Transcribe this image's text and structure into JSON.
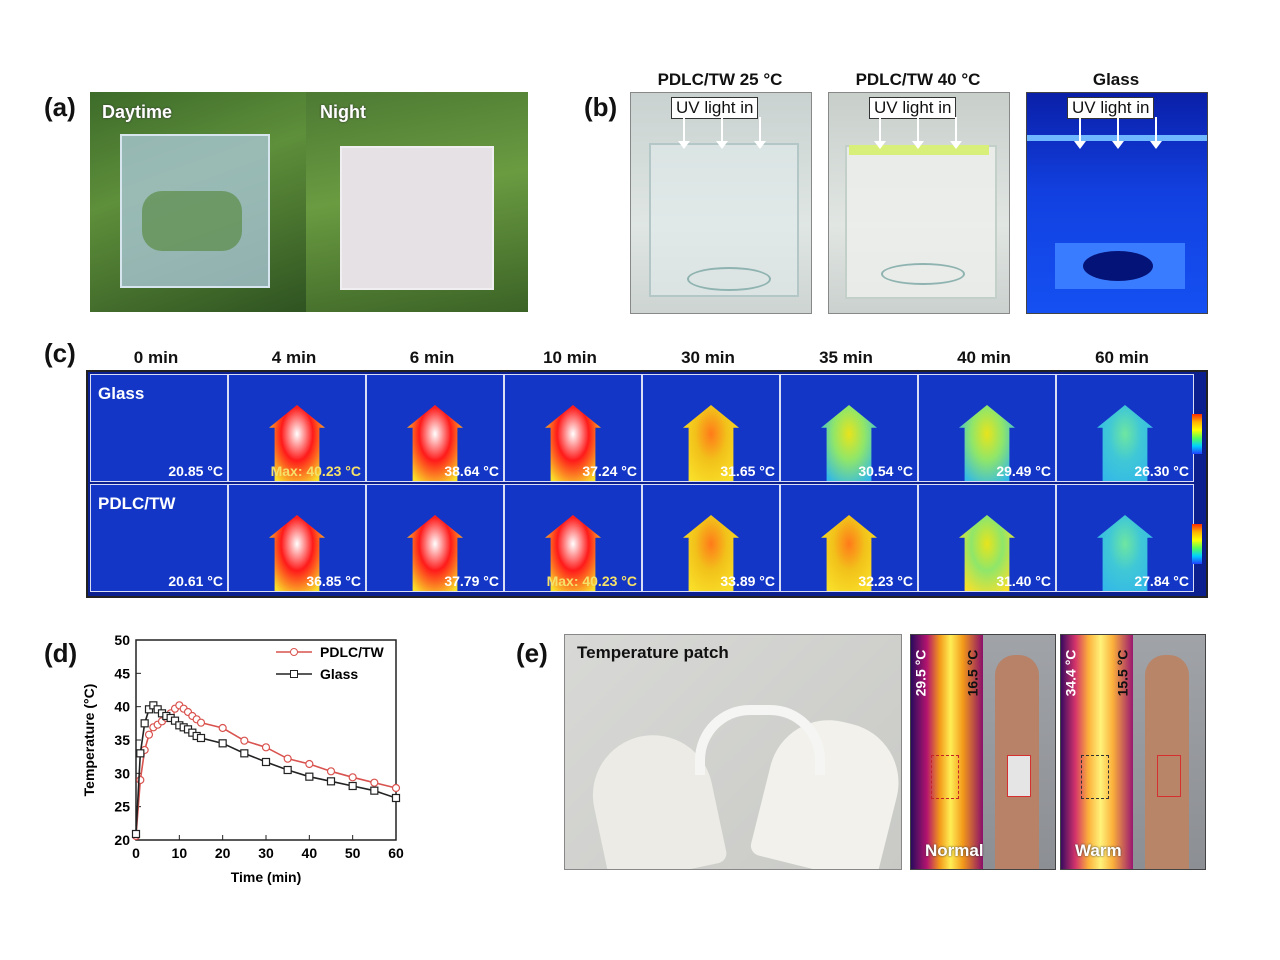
{
  "panels": {
    "a": {
      "letter": "(a)",
      "labels": [
        "Daytime",
        "Night"
      ]
    },
    "b": {
      "letter": "(b)",
      "titles": [
        "PDLC/TW 25 °C",
        "PDLC/TW 40 °C",
        "Glass"
      ],
      "uv_label": "UV light in"
    },
    "c": {
      "letter": "(c)",
      "times": [
        "0 min",
        "4 min",
        "6 min",
        "10 min",
        "30 min",
        "35 min",
        "40 min",
        "60 min"
      ],
      "rows": [
        {
          "name": "Glass",
          "temps": [
            "20.85 °C",
            "Max: 40.23 °C",
            "38.64 °C",
            "37.24 °C",
            "31.65 °C",
            "30.54 °C",
            "29.49 °C",
            "26.30 °C"
          ],
          "heat": [
            0,
            1.0,
            0.95,
            0.9,
            0.6,
            0.5,
            0.4,
            0.2
          ]
        },
        {
          "name": "PDLC/TW",
          "temps": [
            "20.61 °C",
            "36.85 °C",
            "37.79 °C",
            "Max: 40.23 °C",
            "33.89 °C",
            "32.23 °C",
            "31.40 °C",
            "27.84 °C"
          ],
          "heat": [
            0,
            0.9,
            0.92,
            1.0,
            0.7,
            0.62,
            0.55,
            0.25
          ]
        }
      ]
    },
    "d": {
      "letter": "(d)"
    },
    "e": {
      "letter": "(e)",
      "photo_label": "Temperature patch",
      "normal": {
        "label": "Normal",
        "max": "29.5 °C",
        "min": "16.5 °C"
      },
      "warm": {
        "label": "Warm",
        "max": "34.4 °C",
        "min": "15.5 °C"
      }
    }
  },
  "chart_data": {
    "type": "line",
    "xlabel": "Time (min)",
    "ylabel": "Temperature (°C)",
    "xlim": [
      0,
      60
    ],
    "ylim": [
      20,
      50
    ],
    "xticks": [
      0,
      10,
      20,
      30,
      40,
      50,
      60
    ],
    "yticks": [
      20,
      25,
      30,
      35,
      40,
      45,
      50
    ],
    "legend_position": "top-right",
    "series": [
      {
        "name": "PDLC/TW",
        "color": "#d9534f",
        "x": [
          0,
          1,
          2,
          3,
          4,
          5,
          6,
          7,
          8,
          9,
          10,
          11,
          12,
          13,
          14,
          15,
          20,
          25,
          30,
          35,
          40,
          45,
          50,
          55,
          60
        ],
        "y": [
          20.6,
          29.0,
          33.5,
          35.8,
          36.9,
          37.3,
          37.8,
          38.3,
          39.0,
          39.7,
          40.2,
          39.7,
          39.2,
          38.6,
          38.1,
          37.6,
          36.8,
          34.9,
          33.9,
          32.2,
          31.4,
          30.3,
          29.4,
          28.6,
          27.8
        ]
      },
      {
        "name": "Glass",
        "color": "#222222",
        "x": [
          0,
          1,
          2,
          3,
          4,
          5,
          6,
          7,
          8,
          9,
          10,
          11,
          12,
          13,
          14,
          15,
          20,
          25,
          30,
          35,
          40,
          45,
          50,
          55,
          60
        ],
        "y": [
          20.9,
          33.0,
          37.5,
          39.6,
          40.2,
          39.6,
          39.0,
          38.6,
          38.3,
          37.9,
          37.2,
          36.9,
          36.6,
          36.1,
          35.6,
          35.3,
          34.5,
          33.0,
          31.7,
          30.5,
          29.5,
          28.8,
          28.1,
          27.4,
          26.3
        ]
      }
    ]
  }
}
